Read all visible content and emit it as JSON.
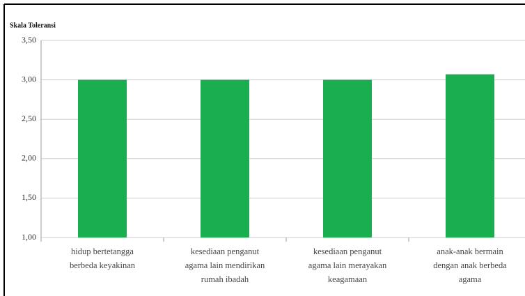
{
  "chart_data": {
    "type": "bar",
    "y_label": "Skala Toleransi",
    "categories": [
      [
        "hidup bertetangga",
        "berbeda keyakinan"
      ],
      [
        "kesediaan penganut",
        "agama lain mendirikan",
        "rumah ibadah"
      ],
      [
        "kesediaan penganut",
        "agama lain merayakan",
        "keagamaan"
      ],
      [
        "anak-anak bermain",
        "dengan anak berbeda",
        "agama"
      ]
    ],
    "values": [
      3.0,
      3.0,
      3.0,
      3.07
    ],
    "color": "#1aae50",
    "ylim": [
      1,
      3.5
    ],
    "yticks": [
      {
        "value": 1,
        "label": "1,00"
      },
      {
        "value": 1.5,
        "label": "1,50"
      },
      {
        "value": 2,
        "label": "2,00"
      },
      {
        "value": 2.5,
        "label": "2,50"
      },
      {
        "value": 3,
        "label": "3,00"
      },
      {
        "value": 3.5,
        "label": "3,50"
      }
    ],
    "grid": true
  }
}
